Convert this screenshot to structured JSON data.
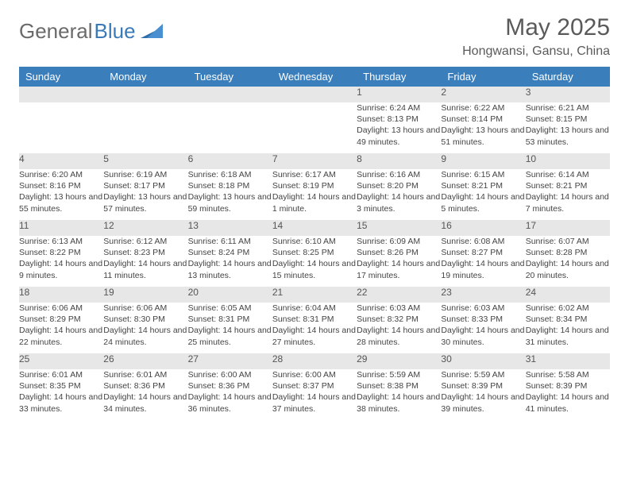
{
  "brand": {
    "part1": "General",
    "part2": "Blue"
  },
  "title": "May 2025",
  "location": "Hongwansi, Gansu, China",
  "colors": {
    "header_bg": "#3a7ebc",
    "header_text": "#ffffff",
    "daynum_bg": "#e7e7e7",
    "row_border": "#3a7ebc",
    "body_text": "#444444",
    "title_text": "#5a5a5a",
    "logo_gray": "#6a6a6a",
    "logo_blue": "#3a7ab8"
  },
  "weekdays": [
    "Sunday",
    "Monday",
    "Tuesday",
    "Wednesday",
    "Thursday",
    "Friday",
    "Saturday"
  ],
  "weeks": [
    [
      null,
      null,
      null,
      null,
      {
        "n": "1",
        "sunrise": "6:24 AM",
        "sunset": "8:13 PM",
        "daylight": "13 hours and 49 minutes."
      },
      {
        "n": "2",
        "sunrise": "6:22 AM",
        "sunset": "8:14 PM",
        "daylight": "13 hours and 51 minutes."
      },
      {
        "n": "3",
        "sunrise": "6:21 AM",
        "sunset": "8:15 PM",
        "daylight": "13 hours and 53 minutes."
      }
    ],
    [
      {
        "n": "4",
        "sunrise": "6:20 AM",
        "sunset": "8:16 PM",
        "daylight": "13 hours and 55 minutes."
      },
      {
        "n": "5",
        "sunrise": "6:19 AM",
        "sunset": "8:17 PM",
        "daylight": "13 hours and 57 minutes."
      },
      {
        "n": "6",
        "sunrise": "6:18 AM",
        "sunset": "8:18 PM",
        "daylight": "13 hours and 59 minutes."
      },
      {
        "n": "7",
        "sunrise": "6:17 AM",
        "sunset": "8:19 PM",
        "daylight": "14 hours and 1 minute."
      },
      {
        "n": "8",
        "sunrise": "6:16 AM",
        "sunset": "8:20 PM",
        "daylight": "14 hours and 3 minutes."
      },
      {
        "n": "9",
        "sunrise": "6:15 AM",
        "sunset": "8:21 PM",
        "daylight": "14 hours and 5 minutes."
      },
      {
        "n": "10",
        "sunrise": "6:14 AM",
        "sunset": "8:21 PM",
        "daylight": "14 hours and 7 minutes."
      }
    ],
    [
      {
        "n": "11",
        "sunrise": "6:13 AM",
        "sunset": "8:22 PM",
        "daylight": "14 hours and 9 minutes."
      },
      {
        "n": "12",
        "sunrise": "6:12 AM",
        "sunset": "8:23 PM",
        "daylight": "14 hours and 11 minutes."
      },
      {
        "n": "13",
        "sunrise": "6:11 AM",
        "sunset": "8:24 PM",
        "daylight": "14 hours and 13 minutes."
      },
      {
        "n": "14",
        "sunrise": "6:10 AM",
        "sunset": "8:25 PM",
        "daylight": "14 hours and 15 minutes."
      },
      {
        "n": "15",
        "sunrise": "6:09 AM",
        "sunset": "8:26 PM",
        "daylight": "14 hours and 17 minutes."
      },
      {
        "n": "16",
        "sunrise": "6:08 AM",
        "sunset": "8:27 PM",
        "daylight": "14 hours and 19 minutes."
      },
      {
        "n": "17",
        "sunrise": "6:07 AM",
        "sunset": "8:28 PM",
        "daylight": "14 hours and 20 minutes."
      }
    ],
    [
      {
        "n": "18",
        "sunrise": "6:06 AM",
        "sunset": "8:29 PM",
        "daylight": "14 hours and 22 minutes."
      },
      {
        "n": "19",
        "sunrise": "6:06 AM",
        "sunset": "8:30 PM",
        "daylight": "14 hours and 24 minutes."
      },
      {
        "n": "20",
        "sunrise": "6:05 AM",
        "sunset": "8:31 PM",
        "daylight": "14 hours and 25 minutes."
      },
      {
        "n": "21",
        "sunrise": "6:04 AM",
        "sunset": "8:31 PM",
        "daylight": "14 hours and 27 minutes."
      },
      {
        "n": "22",
        "sunrise": "6:03 AM",
        "sunset": "8:32 PM",
        "daylight": "14 hours and 28 minutes."
      },
      {
        "n": "23",
        "sunrise": "6:03 AM",
        "sunset": "8:33 PM",
        "daylight": "14 hours and 30 minutes."
      },
      {
        "n": "24",
        "sunrise": "6:02 AM",
        "sunset": "8:34 PM",
        "daylight": "14 hours and 31 minutes."
      }
    ],
    [
      {
        "n": "25",
        "sunrise": "6:01 AM",
        "sunset": "8:35 PM",
        "daylight": "14 hours and 33 minutes."
      },
      {
        "n": "26",
        "sunrise": "6:01 AM",
        "sunset": "8:36 PM",
        "daylight": "14 hours and 34 minutes."
      },
      {
        "n": "27",
        "sunrise": "6:00 AM",
        "sunset": "8:36 PM",
        "daylight": "14 hours and 36 minutes."
      },
      {
        "n": "28",
        "sunrise": "6:00 AM",
        "sunset": "8:37 PM",
        "daylight": "14 hours and 37 minutes."
      },
      {
        "n": "29",
        "sunrise": "5:59 AM",
        "sunset": "8:38 PM",
        "daylight": "14 hours and 38 minutes."
      },
      {
        "n": "30",
        "sunrise": "5:59 AM",
        "sunset": "8:39 PM",
        "daylight": "14 hours and 39 minutes."
      },
      {
        "n": "31",
        "sunrise": "5:58 AM",
        "sunset": "8:39 PM",
        "daylight": "14 hours and 41 minutes."
      }
    ]
  ],
  "labels": {
    "sunrise": "Sunrise:",
    "sunset": "Sunset:",
    "daylight": "Daylight:"
  }
}
